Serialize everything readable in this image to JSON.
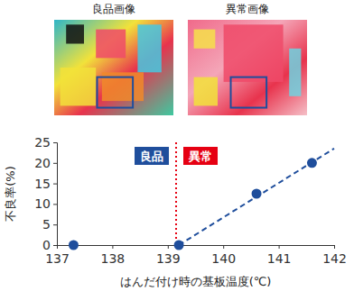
{
  "panels": [
    {
      "title": "良品画像"
    },
    {
      "title": "異常画像"
    }
  ],
  "chart_data": {
    "type": "scatter",
    "x_label": "はんだ付け時の基板温度(℃)",
    "y_label": "不良率(%)",
    "xlim": [
      137,
      142
    ],
    "ylim": [
      0,
      25
    ],
    "xticks": [
      137,
      138,
      139,
      140,
      141,
      142
    ],
    "yticks": [
      0,
      5,
      10,
      15,
      20,
      25
    ],
    "grid": false,
    "series": [
      {
        "type": "scatter",
        "x": [
          137.3,
          139.2,
          140.6,
          141.6
        ],
        "values": [
          0,
          0,
          12.5,
          20
        ],
        "color": "#1f4e9c",
        "marker": "circle"
      },
      {
        "type": "line",
        "x": [
          139.2,
          142
        ],
        "values": [
          0,
          23.5
        ],
        "color": "#1f4e9c",
        "line_style": "dashed"
      }
    ],
    "vlines": [
      {
        "x": 139.15,
        "color": "#e60012",
        "line_style": "dotted"
      }
    ],
    "annotations": [
      {
        "text": "良品",
        "color": "#1f4e9c"
      },
      {
        "text": "異常",
        "color": "#e60012"
      }
    ]
  }
}
